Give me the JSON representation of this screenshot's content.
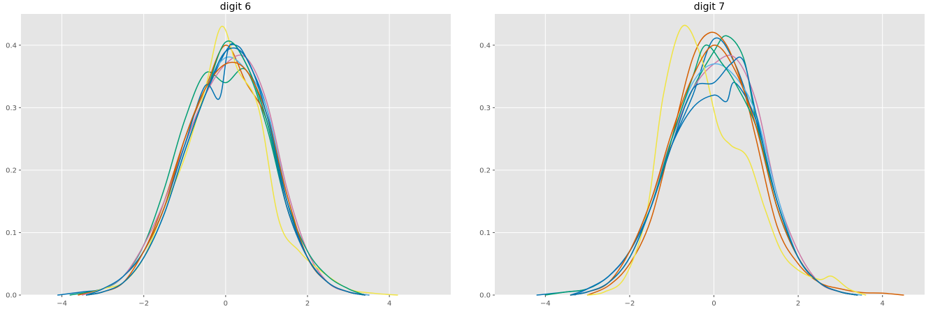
{
  "chart_data": [
    {
      "type": "line",
      "title": "digit 6",
      "xlabel": "",
      "ylabel": "",
      "xlim": [
        -5.0,
        5.5
      ],
      "ylim": [
        0,
        0.45
      ],
      "xticks": [
        -4,
        -2,
        0,
        2,
        4
      ],
      "yticks": [
        0.0,
        0.1,
        0.2,
        0.3,
        0.4
      ],
      "grid": true,
      "series": [
        {
          "color": "#0072B2",
          "x": [
            -4.1,
            -3.5,
            -3.0,
            -2.5,
            -2.0,
            -1.5,
            -1.0,
            -0.5,
            0.0,
            0.25,
            0.5,
            1.0,
            1.5,
            2.0,
            2.5,
            3.0,
            3.5
          ],
          "y": [
            0,
            0.005,
            0.01,
            0.03,
            0.07,
            0.14,
            0.24,
            0.32,
            0.39,
            0.4,
            0.38,
            0.3,
            0.15,
            0.06,
            0.02,
            0.005,
            0
          ]
        },
        {
          "color": "#009E73",
          "x": [
            -3.8,
            -3.0,
            -2.5,
            -2.0,
            -1.5,
            -1.0,
            -0.5,
            0.0,
            0.5,
            1.0,
            1.5,
            2.0,
            2.5,
            3.0,
            3.5
          ],
          "y": [
            0,
            0.01,
            0.03,
            0.08,
            0.17,
            0.28,
            0.355,
            0.34,
            0.36,
            0.27,
            0.14,
            0.06,
            0.02,
            0.005,
            0
          ]
        },
        {
          "color": "#D55E00",
          "x": [
            -3.6,
            -3.0,
            -2.5,
            -2.0,
            -1.5,
            -1.0,
            -0.5,
            0.0,
            0.5,
            1.0,
            1.5,
            2.0,
            2.5,
            3.0,
            3.5
          ],
          "y": [
            0,
            0.01,
            0.03,
            0.07,
            0.15,
            0.25,
            0.33,
            0.4,
            0.34,
            0.28,
            0.14,
            0.06,
            0.02,
            0.005,
            0
          ]
        },
        {
          "color": "#CC79A7",
          "x": [
            -3.5,
            -3.0,
            -2.5,
            -2.0,
            -1.5,
            -1.0,
            -0.5,
            0.0,
            0.5,
            1.0,
            1.5,
            2.0,
            2.5,
            3.0,
            3.5
          ],
          "y": [
            0,
            0.01,
            0.03,
            0.08,
            0.15,
            0.24,
            0.32,
            0.37,
            0.38,
            0.31,
            0.17,
            0.07,
            0.02,
            0.005,
            0
          ]
        },
        {
          "color": "#56B4E9",
          "x": [
            -3.4,
            -3.0,
            -2.5,
            -2.0,
            -1.5,
            -1.0,
            -0.5,
            0.0,
            0.5,
            1.0,
            1.5,
            2.0,
            2.5,
            3.0,
            3.5
          ],
          "y": [
            0,
            0.01,
            0.03,
            0.07,
            0.14,
            0.25,
            0.33,
            0.38,
            0.36,
            0.3,
            0.16,
            0.06,
            0.02,
            0.005,
            0
          ]
        },
        {
          "color": "#F0E442",
          "x": [
            -3.4,
            -3.0,
            -2.5,
            -2.0,
            -1.5,
            -1.0,
            -0.5,
            -0.1,
            0.3,
            0.8,
            1.3,
            1.8,
            2.3,
            3.0,
            3.6,
            4.2
          ],
          "y": [
            0,
            0.01,
            0.02,
            0.06,
            0.14,
            0.22,
            0.33,
            0.43,
            0.36,
            0.3,
            0.12,
            0.07,
            0.04,
            0.01,
            0.003,
            0
          ]
        },
        {
          "color": "#0072B2",
          "x": [
            -3.4,
            -3.0,
            -2.5,
            -2.0,
            -1.5,
            -1.0,
            -0.5,
            -0.15,
            0.1,
            0.5,
            1.0,
            1.5,
            2.0,
            2.5,
            3.0,
            3.4
          ],
          "y": [
            0,
            0.01,
            0.03,
            0.07,
            0.14,
            0.24,
            0.335,
            0.315,
            0.4,
            0.37,
            0.28,
            0.14,
            0.06,
            0.02,
            0.005,
            0
          ]
        },
        {
          "color": "#009E73",
          "x": [
            -3.4,
            -3.0,
            -2.5,
            -2.0,
            -1.5,
            -1.0,
            -0.5,
            0.0,
            0.5,
            1.0,
            1.5,
            2.0,
            2.5,
            3.0,
            3.4
          ],
          "y": [
            0,
            0.005,
            0.02,
            0.06,
            0.13,
            0.23,
            0.32,
            0.405,
            0.37,
            0.28,
            0.15,
            0.07,
            0.03,
            0.01,
            0
          ]
        },
        {
          "color": "#D55E00",
          "x": [
            -3.4,
            -3.0,
            -2.5,
            -2.0,
            -1.5,
            -1.0,
            -0.5,
            0.0,
            0.5,
            1.0,
            1.5,
            2.0,
            2.5,
            3.0,
            3.4
          ],
          "y": [
            0,
            0.005,
            0.02,
            0.07,
            0.14,
            0.25,
            0.33,
            0.37,
            0.36,
            0.29,
            0.16,
            0.06,
            0.02,
            0.005,
            0
          ]
        },
        {
          "color": "#0072B2",
          "x": [
            -3.4,
            -3.0,
            -2.5,
            -2.0,
            -1.5,
            -1.0,
            -0.5,
            0.0,
            0.5,
            1.0,
            1.5,
            2.0,
            2.5,
            3.0,
            3.4
          ],
          "y": [
            0,
            0.005,
            0.02,
            0.06,
            0.13,
            0.23,
            0.32,
            0.39,
            0.38,
            0.29,
            0.15,
            0.06,
            0.02,
            0.005,
            0
          ]
        }
      ]
    },
    {
      "type": "line",
      "title": "digit 7",
      "xlabel": "",
      "ylabel": "",
      "xlim": [
        -5.2,
        5.0
      ],
      "ylim": [
        0,
        0.45
      ],
      "xticks": [
        -4,
        -2,
        0,
        2,
        4
      ],
      "yticks": [
        0.0,
        0.1,
        0.2,
        0.3,
        0.4
      ],
      "grid": true,
      "series": [
        {
          "color": "#0072B2",
          "x": [
            -4.2,
            -3.5,
            -3.0,
            -2.5,
            -2.0,
            -1.5,
            -1.0,
            -0.5,
            0.0,
            0.5,
            1.0,
            1.5,
            2.0,
            2.5,
            3.0,
            3.5
          ],
          "y": [
            0,
            0.005,
            0.01,
            0.03,
            0.07,
            0.14,
            0.24,
            0.32,
            0.41,
            0.37,
            0.27,
            0.14,
            0.06,
            0.02,
            0.005,
            0
          ]
        },
        {
          "color": "#009E73",
          "x": [
            -4.0,
            -3.5,
            -3.0,
            -2.5,
            -2.0,
            -1.5,
            -1.0,
            -0.5,
            0.0,
            0.3,
            0.7,
            1.0,
            1.5,
            2.0,
            2.5,
            3.0,
            3.5
          ],
          "y": [
            0,
            0.005,
            0.01,
            0.03,
            0.07,
            0.15,
            0.25,
            0.33,
            0.39,
            0.415,
            0.38,
            0.28,
            0.14,
            0.06,
            0.02,
            0.005,
            0
          ]
        },
        {
          "color": "#D55E00",
          "x": [
            -3.0,
            -2.5,
            -2.0,
            -1.5,
            -1.0,
            -0.5,
            -0.1,
            0.3,
            0.7,
            1.0,
            1.5,
            2.0,
            2.5,
            3.0,
            3.5,
            4.0,
            4.5
          ],
          "y": [
            0,
            0.015,
            0.05,
            0.12,
            0.25,
            0.38,
            0.42,
            0.4,
            0.33,
            0.25,
            0.11,
            0.05,
            0.02,
            0.01,
            0.004,
            0.003,
            0
          ]
        },
        {
          "color": "#CC79A7",
          "x": [
            -3.3,
            -3.0,
            -2.5,
            -2.0,
            -1.5,
            -1.0,
            -0.5,
            0.0,
            0.5,
            1.0,
            1.5,
            2.0,
            2.5,
            3.0,
            3.5
          ],
          "y": [
            0,
            0.01,
            0.03,
            0.07,
            0.15,
            0.25,
            0.33,
            0.37,
            0.38,
            0.31,
            0.16,
            0.07,
            0.02,
            0.005,
            0
          ]
        },
        {
          "color": "#56B4E9",
          "x": [
            -3.3,
            -3.0,
            -2.5,
            -2.0,
            -1.5,
            -1.0,
            -0.5,
            0.0,
            0.5,
            1.0,
            1.5,
            2.0,
            2.5,
            3.0,
            3.5
          ],
          "y": [
            0,
            0.01,
            0.03,
            0.07,
            0.14,
            0.25,
            0.34,
            0.37,
            0.35,
            0.29,
            0.16,
            0.06,
            0.02,
            0.005,
            0
          ]
        },
        {
          "color": "#F0E442",
          "x": [
            -3.0,
            -2.6,
            -2.1,
            -1.6,
            -1.2,
            -0.75,
            -0.3,
            0.1,
            0.4,
            0.8,
            1.2,
            1.6,
            2.0,
            2.5,
            2.8,
            3.2,
            3.6
          ],
          "y": [
            0,
            0.005,
            0.03,
            0.13,
            0.32,
            0.43,
            0.38,
            0.27,
            0.24,
            0.22,
            0.14,
            0.07,
            0.04,
            0.025,
            0.03,
            0.01,
            0
          ]
        },
        {
          "color": "#0072B2",
          "x": [
            -3.4,
            -3.0,
            -2.5,
            -2.0,
            -1.5,
            -1.0,
            -0.5,
            0.0,
            0.3,
            0.5,
            1.0,
            1.5,
            2.0,
            2.5,
            3.0,
            3.4
          ],
          "y": [
            0,
            0.01,
            0.03,
            0.07,
            0.14,
            0.24,
            0.3,
            0.32,
            0.31,
            0.34,
            0.28,
            0.15,
            0.06,
            0.02,
            0.005,
            0
          ]
        },
        {
          "color": "#009E73",
          "x": [
            -3.4,
            -3.0,
            -2.5,
            -2.0,
            -1.5,
            -1.0,
            -0.5,
            -0.2,
            0.2,
            0.5,
            1.0,
            1.5,
            2.0,
            2.5,
            3.0,
            3.4
          ],
          "y": [
            0,
            0.005,
            0.02,
            0.06,
            0.14,
            0.25,
            0.35,
            0.4,
            0.37,
            0.34,
            0.27,
            0.15,
            0.06,
            0.02,
            0.005,
            0
          ]
        },
        {
          "color": "#D55E00",
          "x": [
            -3.4,
            -3.0,
            -2.5,
            -2.0,
            -1.5,
            -1.0,
            -0.5,
            0.0,
            0.5,
            1.0,
            1.5,
            2.0,
            2.5,
            3.0,
            3.4
          ],
          "y": [
            0,
            0.005,
            0.02,
            0.07,
            0.15,
            0.26,
            0.35,
            0.4,
            0.36,
            0.27,
            0.14,
            0.06,
            0.02,
            0.005,
            0
          ]
        },
        {
          "color": "#0072B2",
          "x": [
            -3.4,
            -3.0,
            -2.5,
            -2.0,
            -1.5,
            -1.0,
            -0.5,
            0.0,
            0.4,
            0.7,
            1.0,
            1.5,
            2.0,
            2.5,
            3.0,
            3.4
          ],
          "y": [
            0,
            0.005,
            0.02,
            0.06,
            0.14,
            0.24,
            0.33,
            0.34,
            0.37,
            0.375,
            0.29,
            0.15,
            0.06,
            0.02,
            0.005,
            0
          ]
        }
      ]
    }
  ]
}
